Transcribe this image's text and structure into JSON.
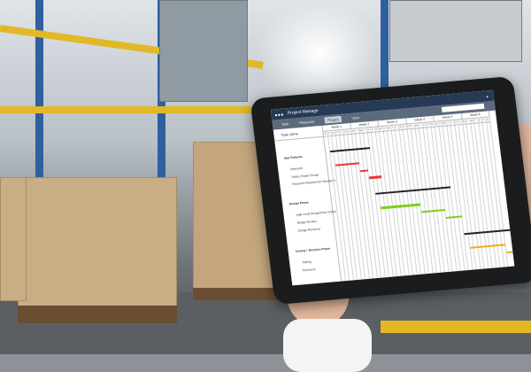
{
  "app": {
    "title": "Project Manage",
    "user_icon": "user-icon"
  },
  "menu": [
    {
      "label": "Task"
    },
    {
      "label": "Resource"
    },
    {
      "label": "Project",
      "active": true
    },
    {
      "label": "View"
    }
  ],
  "search": {
    "placeholder": "",
    "icon": "search-icon"
  },
  "gantt": {
    "task_header": "Task name",
    "weeks": [
      "Week 1",
      "Week 2",
      "Week 3",
      "Week 4",
      "Week 5",
      "Week 6"
    ],
    "day_letters": [
      "M",
      "T",
      "W",
      "T",
      "F",
      "S",
      "S"
    ],
    "colors": {
      "summary": "#222222",
      "app": "#e8343c",
      "design": "#7ccf1a",
      "testing": "#f5a816"
    },
    "tasks": [
      {
        "name": "App Features",
        "phase": true,
        "start": 2,
        "end": 11,
        "group": "summary"
      },
      {
        "name": "Research",
        "start": 3,
        "end": 8,
        "group": "app"
      },
      {
        "name": "Define Project Scope",
        "start": 9,
        "end": 10,
        "group": "app"
      },
      {
        "name": "Research Review/User Research",
        "start": 11,
        "end": 13,
        "group": "app"
      },
      {
        "name": "Design Phase",
        "phase": true,
        "start": 12,
        "end": 30,
        "group": "summary"
      },
      {
        "name": "High Level Design/Flow Charts",
        "start": 13,
        "end": 22,
        "group": "design"
      },
      {
        "name": "Design Review",
        "start": 23,
        "end": 28,
        "group": "design"
      },
      {
        "name": "Design Revisions",
        "start": 29,
        "end": 32,
        "group": "design"
      },
      {
        "name": "Testing + Revision Phase",
        "phase": true,
        "start": 33,
        "end": 46,
        "group": "summary"
      },
      {
        "name": "Testing",
        "start": 34,
        "end": 42,
        "group": "testing"
      },
      {
        "name": "Revisions",
        "start": 43,
        "end": 47,
        "group": "testing"
      }
    ]
  }
}
